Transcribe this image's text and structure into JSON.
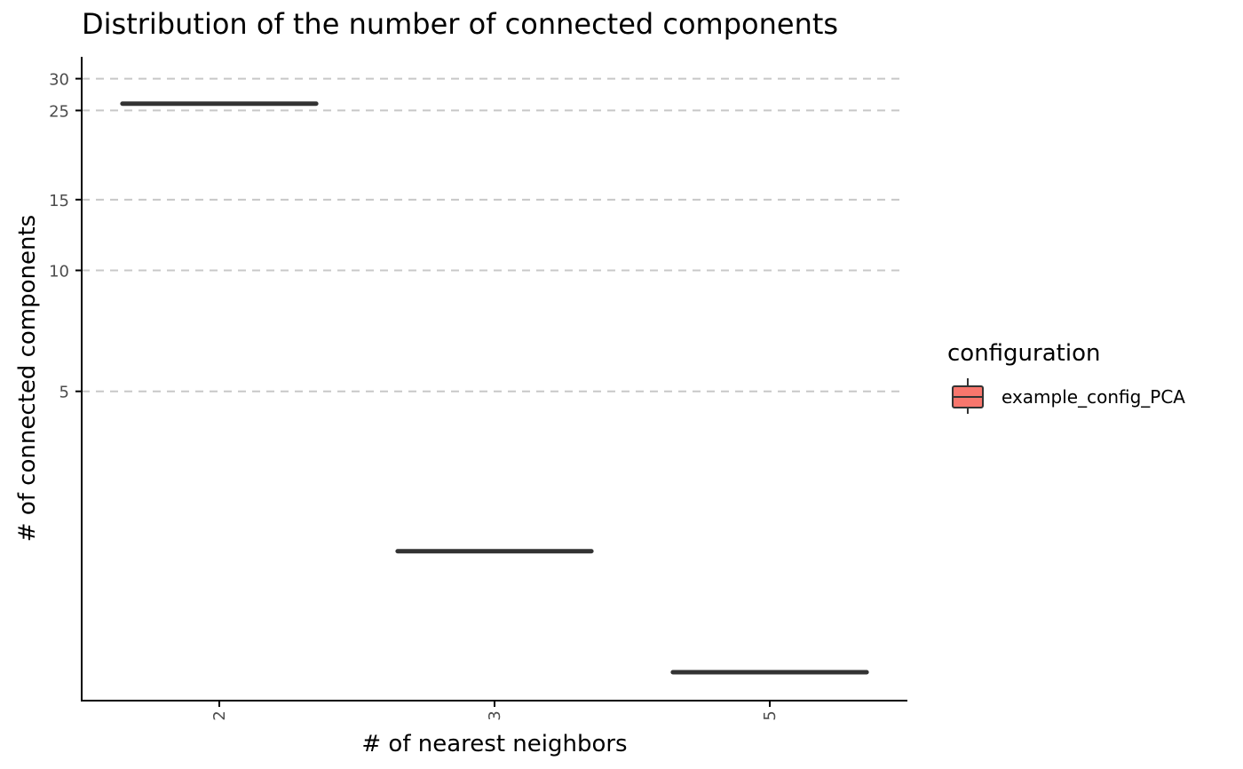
{
  "chart_data": {
    "type": "box",
    "title": "Distribution of the number of connected components",
    "xlabel": "# of nearest neighbors",
    "ylabel": "# of connected components",
    "categories": [
      "2",
      "3",
      "5"
    ],
    "y_scale": "log",
    "y_ticks": [
      5,
      10,
      15,
      25,
      30
    ],
    "y_tick_labels": [
      "5",
      "10",
      "15",
      "25",
      "30"
    ],
    "ylim": [
      1,
      34
    ],
    "grid": "horizontal-dashed",
    "series": [
      {
        "name": "example_config_PCA",
        "color": "#F8766D",
        "values": [
          26,
          2,
          1
        ]
      }
    ],
    "legend": {
      "title": "configuration",
      "position": "right"
    }
  }
}
